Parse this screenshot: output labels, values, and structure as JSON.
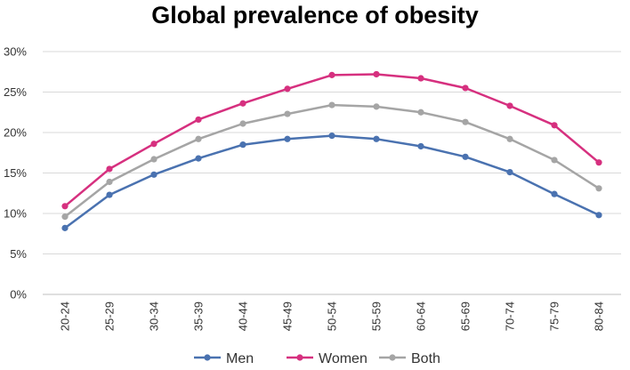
{
  "chart_data": {
    "type": "line",
    "title": "Global prevalence of obesity",
    "xlabel": "",
    "ylabel": "",
    "categories": [
      "20-24",
      "25-29",
      "30-34",
      "35-39",
      "40-44",
      "45-49",
      "50-54",
      "55-59",
      "60-64",
      "65-69",
      "70-74",
      "75-79",
      "80-84"
    ],
    "yticks": [
      "0%",
      "5%",
      "10%",
      "15%",
      "20%",
      "25%",
      "30%"
    ],
    "ylim": [
      0,
      30
    ],
    "grid": true,
    "legend": "bottom",
    "series": [
      {
        "name": "Men",
        "color": "#4a72b0",
        "values": [
          8.2,
          12.3,
          14.8,
          16.8,
          18.5,
          19.2,
          19.6,
          19.2,
          18.3,
          17.0,
          15.1,
          12.4,
          9.8
        ]
      },
      {
        "name": "Women",
        "color": "#d6307f",
        "values": [
          10.9,
          15.5,
          18.6,
          21.6,
          23.6,
          25.4,
          27.1,
          27.2,
          26.7,
          25.5,
          23.3,
          20.9,
          16.3
        ]
      },
      {
        "name": "Both",
        "color": "#a5a5a5",
        "values": [
          9.6,
          13.9,
          16.7,
          19.2,
          21.1,
          22.3,
          23.4,
          23.2,
          22.5,
          21.3,
          19.2,
          16.6,
          13.1
        ]
      }
    ]
  }
}
